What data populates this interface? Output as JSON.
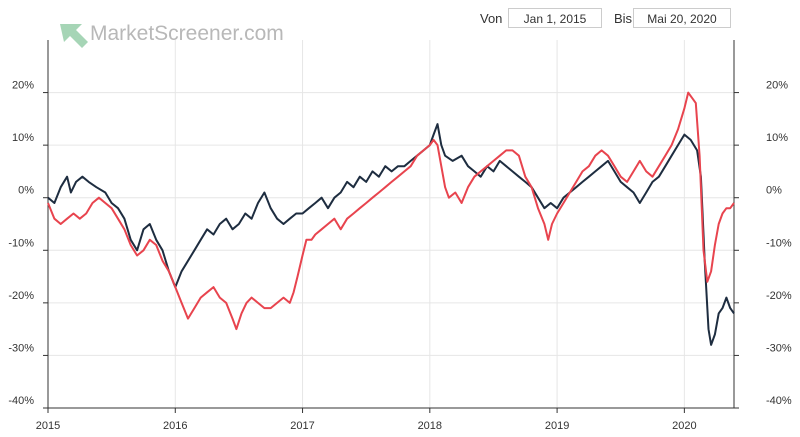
{
  "header": {
    "from_label": "Von",
    "from_value": "Jan 1, 2015",
    "to_label": "Bis",
    "to_value": "Mai 20, 2020",
    "logo_text": "MarketScreener.com"
  },
  "colors": {
    "series_dark": "#1e2d40",
    "series_red": "#e8444e",
    "grid": "#e6e6e6",
    "axis": "#333333",
    "logo_green": "#5cb27a"
  },
  "chart_data": {
    "type": "line",
    "title": "",
    "xlabel": "",
    "ylabel": "",
    "x_range": [
      2015.0,
      2020.39
    ],
    "ylim": [
      -40,
      30
    ],
    "y_ticks": [
      -40,
      -30,
      -20,
      -10,
      0,
      10,
      20
    ],
    "y_tick_labels": [
      "-40%",
      "-30%",
      "-20%",
      "-10%",
      "0%",
      "10%",
      "20%"
    ],
    "x_ticks": [
      2015,
      2016,
      2017,
      2018,
      2019,
      2020
    ],
    "x_tick_labels": [
      "2015",
      "2016",
      "2017",
      "2018",
      "2019",
      "2020"
    ],
    "grid": true,
    "legend": "none",
    "series": [
      {
        "color": "#1e2d40",
        "points": [
          [
            2015.0,
            0
          ],
          [
            2015.05,
            -1
          ],
          [
            2015.1,
            2
          ],
          [
            2015.15,
            4
          ],
          [
            2015.18,
            1
          ],
          [
            2015.22,
            3
          ],
          [
            2015.27,
            4
          ],
          [
            2015.32,
            3
          ],
          [
            2015.38,
            2
          ],
          [
            2015.45,
            1
          ],
          [
            2015.5,
            -1
          ],
          [
            2015.55,
            -2
          ],
          [
            2015.6,
            -4
          ],
          [
            2015.65,
            -8
          ],
          [
            2015.7,
            -10
          ],
          [
            2015.75,
            -6
          ],
          [
            2015.8,
            -5
          ],
          [
            2015.85,
            -8
          ],
          [
            2015.9,
            -10
          ],
          [
            2015.95,
            -14
          ],
          [
            2016.0,
            -17
          ],
          [
            2016.05,
            -14
          ],
          [
            2016.1,
            -12
          ],
          [
            2016.15,
            -10
          ],
          [
            2016.2,
            -8
          ],
          [
            2016.25,
            -6
          ],
          [
            2016.3,
            -7
          ],
          [
            2016.35,
            -5
          ],
          [
            2016.4,
            -4
          ],
          [
            2016.45,
            -6
          ],
          [
            2016.5,
            -5
          ],
          [
            2016.55,
            -3
          ],
          [
            2016.6,
            -4
          ],
          [
            2016.65,
            -1
          ],
          [
            2016.7,
            1
          ],
          [
            2016.75,
            -2
          ],
          [
            2016.8,
            -4
          ],
          [
            2016.85,
            -5
          ],
          [
            2016.9,
            -4
          ],
          [
            2016.95,
            -3
          ],
          [
            2017.0,
            -3
          ],
          [
            2017.05,
            -2
          ],
          [
            2017.1,
            -1
          ],
          [
            2017.15,
            0
          ],
          [
            2017.2,
            -2
          ],
          [
            2017.25,
            0
          ],
          [
            2017.3,
            1
          ],
          [
            2017.35,
            3
          ],
          [
            2017.4,
            2
          ],
          [
            2017.45,
            4
          ],
          [
            2017.5,
            3
          ],
          [
            2017.55,
            5
          ],
          [
            2017.6,
            4
          ],
          [
            2017.65,
            6
          ],
          [
            2017.7,
            5
          ],
          [
            2017.75,
            6
          ],
          [
            2017.8,
            6
          ],
          [
            2017.85,
            7
          ],
          [
            2017.9,
            8
          ],
          [
            2017.95,
            9
          ],
          [
            2018.0,
            10
          ],
          [
            2018.03,
            12
          ],
          [
            2018.06,
            14
          ],
          [
            2018.09,
            10
          ],
          [
            2018.12,
            8
          ],
          [
            2018.18,
            7
          ],
          [
            2018.25,
            8
          ],
          [
            2018.3,
            6
          ],
          [
            2018.35,
            5
          ],
          [
            2018.4,
            4
          ],
          [
            2018.45,
            6
          ],
          [
            2018.5,
            5
          ],
          [
            2018.55,
            7
          ],
          [
            2018.6,
            6
          ],
          [
            2018.65,
            5
          ],
          [
            2018.7,
            4
          ],
          [
            2018.75,
            3
          ],
          [
            2018.8,
            2
          ],
          [
            2018.85,
            0
          ],
          [
            2018.9,
            -2
          ],
          [
            2018.95,
            -1
          ],
          [
            2019.0,
            -2
          ],
          [
            2019.05,
            0
          ],
          [
            2019.1,
            1
          ],
          [
            2019.15,
            2
          ],
          [
            2019.2,
            3
          ],
          [
            2019.25,
            4
          ],
          [
            2019.3,
            5
          ],
          [
            2019.35,
            6
          ],
          [
            2019.4,
            7
          ],
          [
            2019.45,
            5
          ],
          [
            2019.5,
            3
          ],
          [
            2019.55,
            2
          ],
          [
            2019.6,
            1
          ],
          [
            2019.65,
            -1
          ],
          [
            2019.7,
            1
          ],
          [
            2019.75,
            3
          ],
          [
            2019.8,
            4
          ],
          [
            2019.85,
            6
          ],
          [
            2019.9,
            8
          ],
          [
            2019.95,
            10
          ],
          [
            2020.0,
            12
          ],
          [
            2020.05,
            11
          ],
          [
            2020.1,
            9
          ],
          [
            2020.13,
            4
          ],
          [
            2020.16,
            -12
          ],
          [
            2020.19,
            -25
          ],
          [
            2020.21,
            -28
          ],
          [
            2020.24,
            -26
          ],
          [
            2020.27,
            -22
          ],
          [
            2020.3,
            -21
          ],
          [
            2020.33,
            -19
          ],
          [
            2020.36,
            -21
          ],
          [
            2020.39,
            -22
          ]
        ]
      },
      {
        "color": "#e8444e",
        "points": [
          [
            2015.0,
            -1
          ],
          [
            2015.05,
            -4
          ],
          [
            2015.1,
            -5
          ],
          [
            2015.15,
            -4
          ],
          [
            2015.2,
            -3
          ],
          [
            2015.25,
            -4
          ],
          [
            2015.3,
            -3
          ],
          [
            2015.35,
            -1
          ],
          [
            2015.4,
            0
          ],
          [
            2015.45,
            -1
          ],
          [
            2015.5,
            -2
          ],
          [
            2015.55,
            -4
          ],
          [
            2015.6,
            -6
          ],
          [
            2015.65,
            -9
          ],
          [
            2015.7,
            -11
          ],
          [
            2015.75,
            -10
          ],
          [
            2015.8,
            -8
          ],
          [
            2015.85,
            -9
          ],
          [
            2015.9,
            -12
          ],
          [
            2015.95,
            -14
          ],
          [
            2016.0,
            -17
          ],
          [
            2016.05,
            -20
          ],
          [
            2016.1,
            -23
          ],
          [
            2016.15,
            -21
          ],
          [
            2016.2,
            -19
          ],
          [
            2016.25,
            -18
          ],
          [
            2016.3,
            -17
          ],
          [
            2016.35,
            -19
          ],
          [
            2016.4,
            -20
          ],
          [
            2016.45,
            -23
          ],
          [
            2016.48,
            -25
          ],
          [
            2016.52,
            -22
          ],
          [
            2016.56,
            -20
          ],
          [
            2016.6,
            -19
          ],
          [
            2016.65,
            -20
          ],
          [
            2016.7,
            -21
          ],
          [
            2016.75,
            -21
          ],
          [
            2016.8,
            -20
          ],
          [
            2016.85,
            -19
          ],
          [
            2016.9,
            -20
          ],
          [
            2016.93,
            -18
          ],
          [
            2016.96,
            -15
          ],
          [
            2017.0,
            -11
          ],
          [
            2017.03,
            -8
          ],
          [
            2017.07,
            -8
          ],
          [
            2017.1,
            -7
          ],
          [
            2017.15,
            -6
          ],
          [
            2017.2,
            -5
          ],
          [
            2017.25,
            -4
          ],
          [
            2017.3,
            -6
          ],
          [
            2017.35,
            -4
          ],
          [
            2017.4,
            -3
          ],
          [
            2017.45,
            -2
          ],
          [
            2017.5,
            -1
          ],
          [
            2017.55,
            0
          ],
          [
            2017.6,
            1
          ],
          [
            2017.65,
            2
          ],
          [
            2017.7,
            3
          ],
          [
            2017.75,
            4
          ],
          [
            2017.8,
            5
          ],
          [
            2017.85,
            6
          ],
          [
            2017.9,
            8
          ],
          [
            2017.95,
            9
          ],
          [
            2018.0,
            10
          ],
          [
            2018.03,
            11
          ],
          [
            2018.06,
            10
          ],
          [
            2018.09,
            6
          ],
          [
            2018.12,
            2
          ],
          [
            2018.15,
            0
          ],
          [
            2018.2,
            1
          ],
          [
            2018.25,
            -1
          ],
          [
            2018.3,
            2
          ],
          [
            2018.35,
            4
          ],
          [
            2018.4,
            5
          ],
          [
            2018.45,
            6
          ],
          [
            2018.5,
            7
          ],
          [
            2018.55,
            8
          ],
          [
            2018.6,
            9
          ],
          [
            2018.65,
            9
          ],
          [
            2018.7,
            8
          ],
          [
            2018.75,
            4
          ],
          [
            2018.8,
            2
          ],
          [
            2018.85,
            -2
          ],
          [
            2018.9,
            -5
          ],
          [
            2018.93,
            -8
          ],
          [
            2018.96,
            -5
          ],
          [
            2019.0,
            -3
          ],
          [
            2019.05,
            -1
          ],
          [
            2019.1,
            1
          ],
          [
            2019.15,
            3
          ],
          [
            2019.2,
            5
          ],
          [
            2019.25,
            6
          ],
          [
            2019.3,
            8
          ],
          [
            2019.35,
            9
          ],
          [
            2019.4,
            8
          ],
          [
            2019.45,
            6
          ],
          [
            2019.5,
            4
          ],
          [
            2019.55,
            3
          ],
          [
            2019.6,
            5
          ],
          [
            2019.65,
            7
          ],
          [
            2019.7,
            5
          ],
          [
            2019.75,
            4
          ],
          [
            2019.8,
            6
          ],
          [
            2019.85,
            8
          ],
          [
            2019.9,
            10
          ],
          [
            2019.95,
            13
          ],
          [
            2020.0,
            17
          ],
          [
            2020.03,
            20
          ],
          [
            2020.06,
            19
          ],
          [
            2020.09,
            18
          ],
          [
            2020.12,
            8
          ],
          [
            2020.15,
            -10
          ],
          [
            2020.18,
            -16
          ],
          [
            2020.21,
            -14
          ],
          [
            2020.24,
            -9
          ],
          [
            2020.27,
            -5
          ],
          [
            2020.3,
            -3
          ],
          [
            2020.33,
            -2
          ],
          [
            2020.36,
            -2
          ],
          [
            2020.39,
            -1
          ]
        ]
      }
    ]
  }
}
